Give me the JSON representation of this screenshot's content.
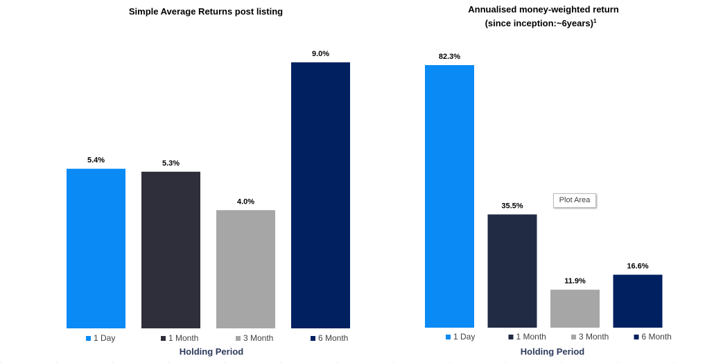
{
  "chart_data": [
    {
      "type": "bar",
      "title": "Simple Average Returns post listing",
      "categories": [
        "1 Day",
        "1 Month",
        "3 Month",
        "6 Month"
      ],
      "values": [
        5.4,
        5.3,
        4.0,
        9.0
      ],
      "value_labels": [
        "5.4%",
        "5.3%",
        "4.0%",
        "9.0%"
      ],
      "colors": [
        "#0a8af5",
        "#2e2f3a",
        "#a6a6a6",
        "#002060"
      ],
      "xlabel": "Holding Period",
      "ylabel": "",
      "ylim": [
        0,
        10.5
      ],
      "legend": "bottom",
      "grid": false
    },
    {
      "type": "bar",
      "title": "Annualised money-weighted return",
      "subtitle": "(since inception:~6years)",
      "subtitle_superscript": "1",
      "categories": [
        "1 Day",
        "1 Month",
        "3 Month",
        "6 Month"
      ],
      "values": [
        82.3,
        35.5,
        11.9,
        16.6
      ],
      "value_labels": [
        "82.3%",
        "35.5%",
        "11.9%",
        "16.6%"
      ],
      "colors": [
        "#0a8af5",
        "#222b44",
        "#a6a6a6",
        "#002060"
      ],
      "xlabel": "Holding Period",
      "ylabel": "",
      "ylim": [
        0,
        85
      ],
      "legend": "bottom",
      "grid": false
    }
  ],
  "tooltip": {
    "text": "Plot Area"
  }
}
